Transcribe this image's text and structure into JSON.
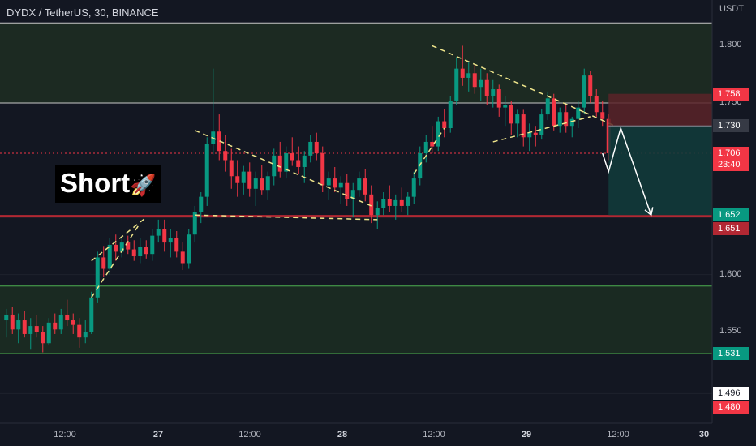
{
  "header": {
    "title": "DYDX / TetherUS, 30, BINANCE",
    "unit": "USDT"
  },
  "annotation": {
    "label": "Short",
    "icon": "rocket-icon",
    "glyph": "🚀"
  },
  "chart_data": {
    "type": "candlestick",
    "ylim": [
      1.47,
      1.84
    ],
    "yticks": [
      "1.800",
      "1.750",
      "1.650",
      "1.600",
      "1.550",
      "1.496"
    ],
    "xticks": [
      {
        "label": "12:00",
        "day": false
      },
      {
        "label": "27",
        "day": true
      },
      {
        "label": "12:00",
        "day": false
      },
      {
        "label": "28",
        "day": true
      },
      {
        "label": "12:00",
        "day": false
      },
      {
        "label": "29",
        "day": true
      },
      {
        "label": "12:00",
        "day": false
      },
      {
        "label": "30",
        "day": true
      }
    ],
    "price_labels": [
      {
        "value": "1.758",
        "color": "#f23645"
      },
      {
        "value": "1.730",
        "color": "#363a45"
      },
      {
        "value": "1.706",
        "sub": "23:40",
        "color": "#f23645"
      },
      {
        "value": "1.652",
        "color": "#089981"
      },
      {
        "value": "1.651",
        "color": "#b22833"
      },
      {
        "value": "1.531",
        "color": "#089981"
      },
      {
        "value": "1.496",
        "color": "#ffffff"
      },
      {
        "value": "1.480",
        "color": "#f23645"
      }
    ],
    "levels": [
      1.82,
      1.75,
      1.651,
      1.59,
      1.531
    ],
    "zones": [
      {
        "from": 1.75,
        "to": 1.82,
        "color": "#1c2a22"
      },
      {
        "from": 1.531,
        "to": 1.59,
        "color": "#1a2a22"
      }
    ],
    "last_price": 1.706,
    "colors": {
      "up": "#089981",
      "down": "#f23645",
      "level": "#c8c8c8",
      "support": "#b22833",
      "trend": "#f0e68c"
    },
    "candles": [
      [
        1.56,
        1.57,
        1.545,
        1.565
      ],
      [
        1.565,
        1.572,
        1.548,
        1.552
      ],
      [
        1.552,
        1.566,
        1.54,
        1.56
      ],
      [
        1.56,
        1.568,
        1.545,
        1.548
      ],
      [
        1.548,
        1.562,
        1.535,
        1.555
      ],
      [
        1.555,
        1.565,
        1.545,
        1.55
      ],
      [
        1.55,
        1.555,
        1.532,
        1.54
      ],
      [
        1.54,
        1.562,
        1.538,
        1.558
      ],
      [
        1.558,
        1.566,
        1.548,
        1.552
      ],
      [
        1.552,
        1.57,
        1.548,
        1.565
      ],
      [
        1.565,
        1.578,
        1.555,
        1.56
      ],
      [
        1.56,
        1.566,
        1.548,
        1.556
      ],
      [
        1.556,
        1.562,
        1.536,
        1.545
      ],
      [
        1.545,
        1.56,
        1.54,
        1.55
      ],
      [
        1.55,
        1.585,
        1.548,
        1.58
      ],
      [
        1.58,
        1.62,
        1.575,
        1.615
      ],
      [
        1.615,
        1.625,
        1.598,
        1.605
      ],
      [
        1.605,
        1.632,
        1.6,
        1.626
      ],
      [
        1.626,
        1.635,
        1.612,
        1.62
      ],
      [
        1.62,
        1.632,
        1.615,
        1.628
      ],
      [
        1.628,
        1.634,
        1.618,
        1.622
      ],
      [
        1.622,
        1.63,
        1.612,
        1.616
      ],
      [
        1.616,
        1.632,
        1.61,
        1.624
      ],
      [
        1.624,
        1.63,
        1.614,
        1.618
      ],
      [
        1.618,
        1.64,
        1.612,
        1.634
      ],
      [
        1.634,
        1.648,
        1.628,
        1.64
      ],
      [
        1.64,
        1.648,
        1.62,
        1.628
      ],
      [
        1.628,
        1.64,
        1.615,
        1.632
      ],
      [
        1.632,
        1.638,
        1.615,
        1.62
      ],
      [
        1.62,
        1.628,
        1.604,
        1.61
      ],
      [
        1.61,
        1.64,
        1.605,
        1.635
      ],
      [
        1.635,
        1.66,
        1.628,
        1.655
      ],
      [
        1.655,
        1.672,
        1.645,
        1.668
      ],
      [
        1.668,
        1.72,
        1.66,
        1.714
      ],
      [
        1.714,
        1.78,
        1.705,
        1.725
      ],
      [
        1.725,
        1.74,
        1.7,
        1.708
      ],
      [
        1.708,
        1.722,
        1.69,
        1.7
      ],
      [
        1.7,
        1.71,
        1.675,
        1.686
      ],
      [
        1.686,
        1.7,
        1.668,
        1.68
      ],
      [
        1.68,
        1.695,
        1.67,
        1.69
      ],
      [
        1.69,
        1.698,
        1.668,
        1.675
      ],
      [
        1.675,
        1.69,
        1.66,
        1.684
      ],
      [
        1.684,
        1.696,
        1.67,
        1.674
      ],
      [
        1.674,
        1.69,
        1.665,
        1.686
      ],
      [
        1.686,
        1.71,
        1.678,
        1.704
      ],
      [
        1.704,
        1.716,
        1.685,
        1.69
      ],
      [
        1.69,
        1.712,
        1.684,
        1.706
      ],
      [
        1.706,
        1.72,
        1.695,
        1.7
      ],
      [
        1.7,
        1.712,
        1.688,
        1.694
      ],
      [
        1.694,
        1.708,
        1.68,
        1.704
      ],
      [
        1.704,
        1.722,
        1.698,
        1.716
      ],
      [
        1.716,
        1.724,
        1.7,
        1.706
      ],
      [
        1.706,
        1.712,
        1.672,
        1.678
      ],
      [
        1.678,
        1.69,
        1.665,
        1.684
      ],
      [
        1.684,
        1.694,
        1.672,
        1.676
      ],
      [
        1.676,
        1.686,
        1.662,
        1.68
      ],
      [
        1.68,
        1.688,
        1.66,
        1.666
      ],
      [
        1.666,
        1.68,
        1.65,
        1.674
      ],
      [
        1.674,
        1.69,
        1.668,
        1.684
      ],
      [
        1.684,
        1.692,
        1.664,
        1.67
      ],
      [
        1.67,
        1.678,
        1.645,
        1.652
      ],
      [
        1.652,
        1.664,
        1.64,
        1.658
      ],
      [
        1.658,
        1.672,
        1.652,
        1.666
      ],
      [
        1.666,
        1.678,
        1.655,
        1.66
      ],
      [
        1.66,
        1.67,
        1.648,
        1.665
      ],
      [
        1.665,
        1.676,
        1.655,
        1.66
      ],
      [
        1.66,
        1.672,
        1.652,
        1.668
      ],
      [
        1.668,
        1.69,
        1.662,
        1.684
      ],
      [
        1.684,
        1.712,
        1.678,
        1.706
      ],
      [
        1.706,
        1.722,
        1.698,
        1.716
      ],
      [
        1.716,
        1.73,
        1.706,
        1.712
      ],
      [
        1.712,
        1.738,
        1.708,
        1.734
      ],
      [
        1.734,
        1.745,
        1.72,
        1.728
      ],
      [
        1.728,
        1.756,
        1.724,
        1.752
      ],
      [
        1.752,
        1.79,
        1.748,
        1.78
      ],
      [
        1.78,
        1.8,
        1.765,
        1.772
      ],
      [
        1.772,
        1.786,
        1.76,
        1.776
      ],
      [
        1.776,
        1.784,
        1.758,
        1.764
      ],
      [
        1.764,
        1.78,
        1.752,
        1.77
      ],
      [
        1.77,
        1.776,
        1.748,
        1.756
      ],
      [
        1.756,
        1.77,
        1.746,
        1.762
      ],
      [
        1.762,
        1.766,
        1.738,
        1.746
      ],
      [
        1.746,
        1.756,
        1.73,
        1.748
      ],
      [
        1.748,
        1.752,
        1.722,
        1.732
      ],
      [
        1.732,
        1.744,
        1.72,
        1.74
      ],
      [
        1.74,
        1.744,
        1.712,
        1.72
      ],
      [
        1.72,
        1.732,
        1.708,
        1.724
      ],
      [
        1.724,
        1.73,
        1.712,
        1.722
      ],
      [
        1.722,
        1.745,
        1.718,
        1.74
      ],
      [
        1.74,
        1.76,
        1.735,
        1.754
      ],
      [
        1.754,
        1.758,
        1.726,
        1.73
      ],
      [
        1.73,
        1.746,
        1.724,
        1.742
      ],
      [
        1.742,
        1.748,
        1.724,
        1.73
      ],
      [
        1.73,
        1.738,
        1.72,
        1.736
      ],
      [
        1.736,
        1.752,
        1.728,
        1.746
      ],
      [
        1.746,
        1.78,
        1.74,
        1.774
      ],
      [
        1.774,
        1.778,
        1.75,
        1.756
      ],
      [
        1.756,
        1.762,
        1.738,
        1.742
      ],
      [
        1.742,
        1.752,
        1.73,
        1.736
      ],
      [
        1.736,
        1.74,
        1.7,
        1.706
      ]
    ],
    "trendlines": [
      [
        [
          1.58,
          14
        ],
        [
          1.645,
          22
        ]
      ],
      [
        [
          1.612,
          14
        ],
        [
          1.65,
          23
        ]
      ],
      [
        [
          1.726,
          31
        ],
        [
          1.66,
          60
        ]
      ],
      [
        [
          1.652,
          31
        ],
        [
          1.648,
          61
        ]
      ],
      [
        [
          1.688,
          67
        ],
        [
          1.728,
          72
        ]
      ],
      [
        [
          1.8,
          70
        ],
        [
          1.742,
          95
        ]
      ],
      [
        [
          1.716,
          80
        ],
        [
          1.738,
          96
        ]
      ],
      [
        [
          1.742,
          95
        ],
        [
          1.73,
          100
        ]
      ]
    ],
    "projection": [
      [
        1.706,
        98
      ],
      [
        1.69,
        99
      ],
      [
        1.728,
        101
      ],
      [
        1.652,
        106
      ]
    ]
  }
}
